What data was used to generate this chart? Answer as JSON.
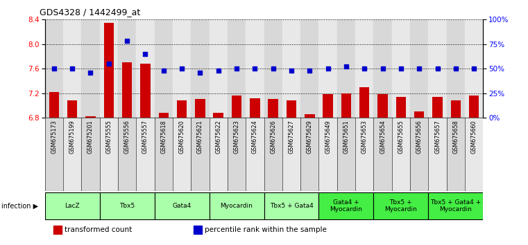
{
  "title": "GDS4328 / 1442499_at",
  "samples": [
    "GSM675173",
    "GSM675199",
    "GSM675201",
    "GSM675555",
    "GSM675556",
    "GSM675557",
    "GSM675618",
    "GSM675620",
    "GSM675621",
    "GSM675622",
    "GSM675623",
    "GSM675624",
    "GSM675626",
    "GSM675627",
    "GSM675629",
    "GSM675649",
    "GSM675651",
    "GSM675653",
    "GSM675654",
    "GSM675655",
    "GSM675656",
    "GSM675657",
    "GSM675658",
    "GSM675660"
  ],
  "bar_values": [
    7.22,
    7.08,
    6.82,
    8.35,
    7.7,
    7.68,
    6.88,
    7.08,
    7.1,
    6.88,
    7.16,
    7.12,
    7.1,
    7.08,
    6.86,
    7.18,
    7.2,
    7.3,
    7.18,
    7.14,
    6.9,
    7.14,
    7.08,
    7.16
  ],
  "scatter_values": [
    50,
    50,
    46,
    55,
    78,
    65,
    48,
    50,
    46,
    48,
    50,
    50,
    50,
    48,
    48,
    50,
    52,
    50,
    50,
    50,
    50,
    50,
    50,
    50
  ],
  "groups": [
    {
      "label": "LacZ",
      "start": 0,
      "end": 3,
      "color": "#aaffaa"
    },
    {
      "label": "Tbx5",
      "start": 3,
      "end": 6,
      "color": "#aaffaa"
    },
    {
      "label": "Gata4",
      "start": 6,
      "end": 9,
      "color": "#aaffaa"
    },
    {
      "label": "Myocardin",
      "start": 9,
      "end": 12,
      "color": "#aaffaa"
    },
    {
      "label": "Tbx5 + Gata4",
      "start": 12,
      "end": 15,
      "color": "#aaffaa"
    },
    {
      "label": "Gata4 +\nMyocardin",
      "start": 15,
      "end": 18,
      "color": "#44ee44"
    },
    {
      "label": "Tbx5 +\nMyocardin",
      "start": 18,
      "end": 21,
      "color": "#44ee44"
    },
    {
      "label": "Tbx5 + Gata4 +\nMyocardin",
      "start": 21,
      "end": 24,
      "color": "#44ee44"
    }
  ],
  "ylim_left": [
    6.8,
    8.4
  ],
  "ylim_right": [
    0,
    100
  ],
  "yticks_left": [
    6.8,
    7.2,
    7.6,
    8.0,
    8.4
  ],
  "yticks_right": [
    0,
    25,
    50,
    75,
    100
  ],
  "ytick_labels_right": [
    "0%",
    "25%",
    "50%",
    "75%",
    "100%"
  ],
  "bar_color": "#cc0000",
  "scatter_color": "#0000cc",
  "bar_bottom": 6.8,
  "col_colors": [
    "#d8d8d8",
    "#e8e8e8"
  ],
  "legend_items": [
    {
      "label": "transformed count",
      "color": "#cc0000"
    },
    {
      "label": "percentile rank within the sample",
      "color": "#0000cc"
    }
  ]
}
